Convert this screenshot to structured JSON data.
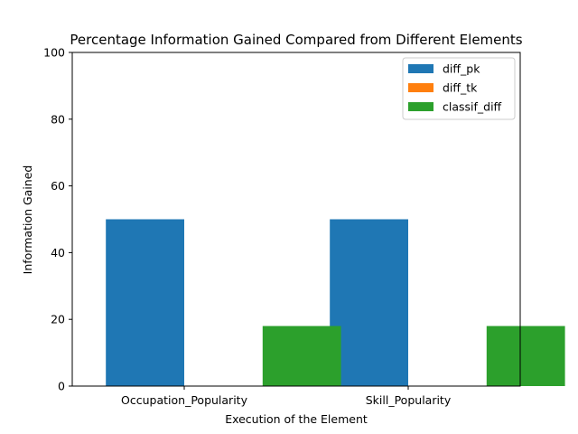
{
  "chart_data": {
    "type": "bar",
    "title": "Percentage Information Gained Compared from Different Elements",
    "xlabel": "Execution of the Element",
    "ylabel": "Information Gained",
    "categories": [
      "Occupation_Popularity",
      "Skill_Popularity"
    ],
    "series": [
      {
        "name": "diff_pk",
        "values": [
          50,
          50
        ],
        "color": "#1f77b4"
      },
      {
        "name": "diff_tk",
        "values": [
          0,
          0
        ],
        "color": "#ff7f0e"
      },
      {
        "name": "classif_diff",
        "values": [
          18,
          18
        ],
        "color": "#2ca02c"
      }
    ],
    "ylim": [
      0,
      100
    ],
    "yticks": [
      0,
      20,
      40,
      60,
      80,
      100
    ],
    "grid": false,
    "legend": "top-right"
  }
}
